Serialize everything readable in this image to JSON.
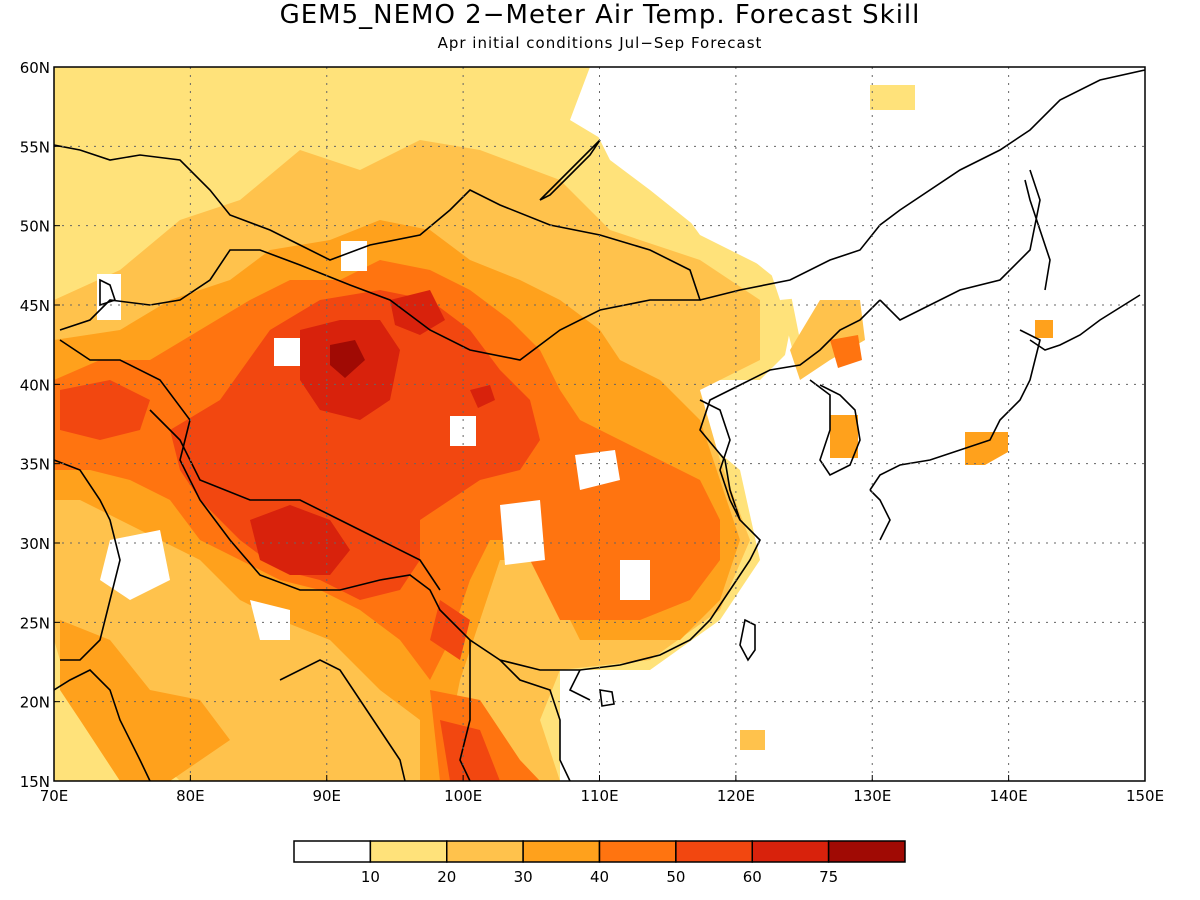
{
  "title": "GEM5_NEMO 2−Meter Air Temp. Forecast Skill",
  "subtitle": "Apr initial conditions  Jul−Sep Forecast",
  "map": {
    "lon_range": [
      70,
      150
    ],
    "lat_range": [
      15,
      60
    ],
    "lon_ticks": [
      {
        "value": 70,
        "label": "70E"
      },
      {
        "value": 80,
        "label": "80E"
      },
      {
        "value": 90,
        "label": "90E"
      },
      {
        "value": 100,
        "label": "100E"
      },
      {
        "value": 110,
        "label": "110E"
      },
      {
        "value": 120,
        "label": "120E"
      },
      {
        "value": 130,
        "label": "130E"
      },
      {
        "value": 140,
        "label": "140E"
      },
      {
        "value": 150,
        "label": "150E"
      }
    ],
    "lat_ticks": [
      {
        "value": 15,
        "label": "15N"
      },
      {
        "value": 20,
        "label": "20N"
      },
      {
        "value": 25,
        "label": "25N"
      },
      {
        "value": 30,
        "label": "30N"
      },
      {
        "value": 35,
        "label": "35N"
      },
      {
        "value": 40,
        "label": "40N"
      },
      {
        "value": 45,
        "label": "45N"
      },
      {
        "value": 50,
        "label": "50N"
      },
      {
        "value": 55,
        "label": "55N"
      },
      {
        "value": 60,
        "label": "60N"
      }
    ]
  },
  "colorbar": {
    "bins": [
      {
        "color": "#ffffff"
      },
      {
        "color": "#ffe27a"
      },
      {
        "color": "#ffc24c"
      },
      {
        "color": "#ffa11c"
      },
      {
        "color": "#ff7410"
      },
      {
        "color": "#f24710"
      },
      {
        "color": "#d8220c"
      },
      {
        "color": "#a00a04"
      }
    ],
    "labels": [
      "10",
      "20",
      "30",
      "40",
      "50",
      "60",
      "75"
    ]
  }
}
